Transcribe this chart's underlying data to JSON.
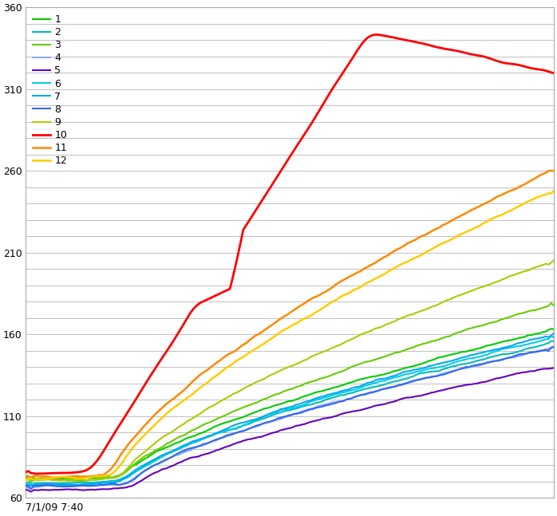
{
  "series_labels": [
    "1",
    "2",
    "3",
    "4",
    "5",
    "6",
    "7",
    "8",
    "9",
    "10",
    "11",
    "12"
  ],
  "series_colors": [
    "#00cc00",
    "#00bbbb",
    "#66cc00",
    "#88aaff",
    "#6600bb",
    "#00ccee",
    "#00aaee",
    "#3366ee",
    "#aacc00",
    "#ff0000",
    "#ff8800",
    "#ffcc00"
  ],
  "series_linewidths": [
    1.5,
    1.5,
    1.5,
    1.5,
    1.5,
    1.5,
    1.5,
    1.5,
    1.5,
    2.0,
    1.8,
    1.8
  ],
  "ylim": [
    60,
    360
  ],
  "major_yticks": [
    60,
    110,
    160,
    210,
    260,
    310,
    360
  ],
  "xlabel_bottom": "7/1/09 7:40",
  "background_color": "#ffffff",
  "grid_color": "#c0c0c0",
  "n_points": 200
}
